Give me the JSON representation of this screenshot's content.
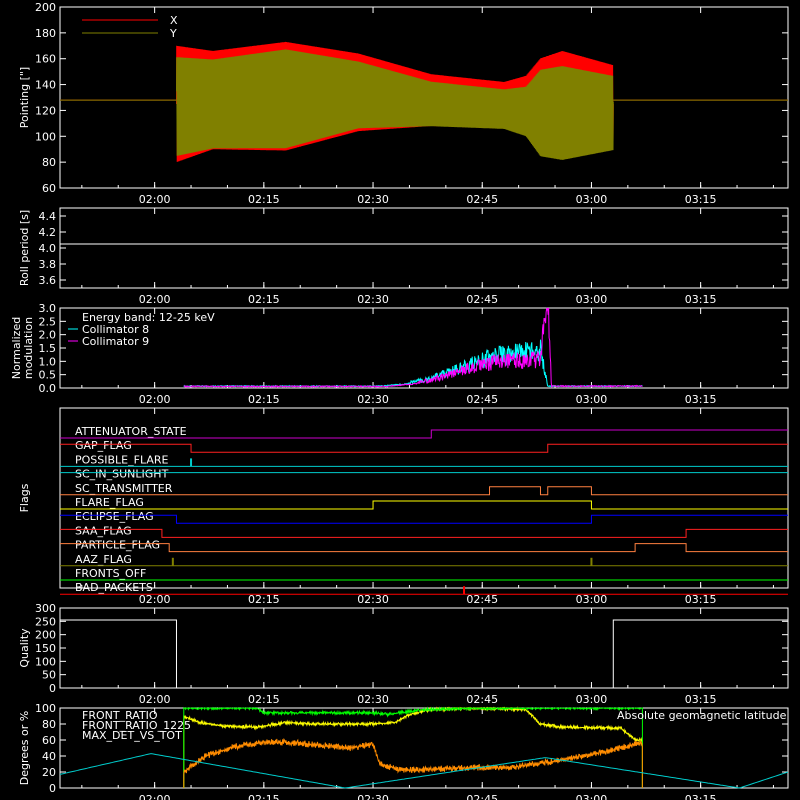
{
  "chart_data": [
    {
      "type": "line",
      "title": "",
      "ylabel": "Pointing [\"]",
      "ylim": [
        60,
        200
      ],
      "yticks": [
        60,
        80,
        100,
        120,
        140,
        160,
        180,
        200
      ],
      "xlim": [
        "01:47",
        "03:27"
      ],
      "xticks": [
        "02:00",
        "02:15",
        "02:30",
        "02:45",
        "03:00",
        "03:15"
      ],
      "legend_placement": "top-left",
      "series": [
        {
          "name": "X",
          "color": "#ff0000",
          "flat_value": 128,
          "active_range": [
            "02:03",
            "03:03"
          ],
          "center": [
            [
              0,
              125
            ],
            [
              5,
              128
            ],
            [
              15,
              131
            ],
            [
              25,
              134
            ],
            [
              35,
              128
            ],
            [
              45,
              124
            ],
            [
              53,
              126
            ],
            [
              60,
              125
            ]
          ],
          "amplitude": [
            [
              0,
              45
            ],
            [
              5,
              38
            ],
            [
              15,
              42
            ],
            [
              25,
              30
            ],
            [
              35,
              20
            ],
            [
              45,
              18
            ],
            [
              48,
              22
            ],
            [
              50,
              35
            ],
            [
              53,
              40
            ],
            [
              60,
              30
            ]
          ]
        },
        {
          "name": "Y",
          "color": "#808000",
          "flat_value": 128,
          "active_range": [
            "02:03",
            "03:03"
          ],
          "center": [
            [
              0,
              123
            ],
            [
              5,
              125
            ],
            [
              15,
              129
            ],
            [
              25,
              132
            ],
            [
              35,
              125
            ],
            [
              45,
              121
            ],
            [
              50,
              118
            ],
            [
              53,
              118
            ],
            [
              60,
              118
            ]
          ],
          "amplitude": [
            [
              0,
              40
            ],
            [
              5,
              36
            ],
            [
              15,
              40
            ],
            [
              25,
              27
            ],
            [
              35,
              18
            ],
            [
              45,
              16
            ],
            [
              48,
              20
            ],
            [
              50,
              35
            ],
            [
              53,
              38
            ],
            [
              60,
              30
            ]
          ]
        }
      ]
    },
    {
      "type": "line",
      "ylabel": "Roll period [s]",
      "ylim": [
        3.5,
        4.5
      ],
      "yticks": [
        "3.6",
        "3.8",
        "4.0",
        "4.2",
        "4.4"
      ],
      "xticks": [
        "02:00",
        "02:15",
        "02:30",
        "02:45",
        "03:00",
        "03:15"
      ],
      "series": [
        {
          "name": "",
          "color": "#ffffff",
          "value": 4.05
        }
      ]
    },
    {
      "type": "line",
      "ylabel": "Normalized modulation",
      "ylim": [
        0,
        3.0
      ],
      "yticks": [
        "0.0",
        "0.5",
        "1.0",
        "1.5",
        "2.0",
        "2.5",
        "3.0"
      ],
      "xticks": [
        "02:00",
        "02:15",
        "02:30",
        "02:45",
        "03:00",
        "03:15"
      ],
      "annotation": "Energy band: 12-25 keV",
      "series": [
        {
          "name": "Collimator 8",
          "color": "#00ffff",
          "range": [
            "02:04",
            "03:07"
          ],
          "profile": [
            [
              0,
              0.05
            ],
            [
              27,
              0.05
            ],
            [
              33,
              0.2
            ],
            [
              38,
              0.5
            ],
            [
              42,
              0.8
            ],
            [
              46,
              0.9
            ],
            [
              49,
              1.0
            ],
            [
              50,
              0.05
            ],
            [
              63,
              0.05
            ]
          ]
        },
        {
          "name": "Collimator 9",
          "color": "#ff00ff",
          "range": [
            "02:04",
            "03:07"
          ],
          "profile": [
            [
              0,
              0.04
            ],
            [
              28,
              0.04
            ],
            [
              34,
              0.2
            ],
            [
              38,
              0.45
            ],
            [
              42,
              0.65
            ],
            [
              46,
              0.7
            ],
            [
              49,
              0.75
            ],
            [
              50,
              2.6
            ],
            [
              50.5,
              0.05
            ],
            [
              63,
              0.05
            ]
          ]
        }
      ]
    },
    {
      "type": "line",
      "ylabel": "Flags",
      "xticks": [
        "02:00",
        "02:15",
        "02:30",
        "02:45",
        "03:00",
        "03:15"
      ],
      "flags": [
        {
          "name": "ATTENUATOR_STATE",
          "color": "#cc00cc",
          "steps": [
            [
              0,
              0
            ],
            [
              51,
              1
            ],
            [
              100,
              1
            ]
          ]
        },
        {
          "name": "GAP_FLAG",
          "color": "#ff2020",
          "steps": [
            [
              0,
              1
            ],
            [
              18,
              0
            ],
            [
              67,
              1
            ],
            [
              100,
              1
            ]
          ]
        },
        {
          "name": "POSSIBLE_FLARE",
          "color": "#00cccc",
          "steps": [
            [
              0,
              0
            ],
            [
              100,
              0
            ]
          ],
          "spikes": [
            18
          ]
        },
        {
          "name": "SC_IN_SUNLIGHT",
          "color": "#00cccc",
          "steps": [
            [
              0,
              1
            ],
            [
              100,
              1
            ]
          ]
        },
        {
          "name": "SC_TRANSMITTER",
          "color": "#ff8040",
          "steps": [
            [
              0,
              0
            ],
            [
              59,
              1
            ],
            [
              66,
              0
            ],
            [
              67,
              1
            ],
            [
              73,
              0
            ],
            [
              100,
              0
            ]
          ]
        },
        {
          "name": "FLARE_FLAG",
          "color": "#ffff00",
          "steps": [
            [
              0,
              0
            ],
            [
              43,
              1
            ],
            [
              73,
              0
            ],
            [
              100,
              0
            ]
          ]
        },
        {
          "name": "ECLIPSE_FLAG",
          "color": "#0000ff",
          "steps": [
            [
              0,
              1
            ],
            [
              16,
              0
            ],
            [
              73,
              1
            ],
            [
              100,
              1
            ]
          ]
        },
        {
          "name": "SAA_FLAG",
          "color": "#ff2020",
          "steps": [
            [
              0,
              1
            ],
            [
              14,
              0
            ],
            [
              86,
              1
            ],
            [
              100,
              1
            ]
          ]
        },
        {
          "name": "PARTICLE_FLAG",
          "color": "#ff8040",
          "steps": [
            [
              0,
              1
            ],
            [
              15,
              0
            ],
            [
              79,
              1
            ],
            [
              86,
              0
            ],
            [
              100,
              0
            ]
          ]
        },
        {
          "name": "AAZ_FLAG",
          "color": "#808000",
          "steps": [
            [
              0,
              0
            ],
            [
              100,
              0
            ]
          ],
          "spikes": [
            15.5,
            73
          ]
        },
        {
          "name": "FRONTS_OFF",
          "color": "#00ff00",
          "steps": [
            [
              0,
              0
            ],
            [
              100,
              0
            ]
          ]
        },
        {
          "name": "BAD_PACKETS",
          "color": "#ff0000",
          "steps": [
            [
              0,
              0
            ],
            [
              100,
              0
            ]
          ],
          "spikes": [
            55.5
          ]
        }
      ]
    },
    {
      "type": "line",
      "ylabel": "Quality",
      "ylim": [
        0,
        300
      ],
      "yticks": [
        "0",
        "50",
        "100",
        "150",
        "200",
        "250",
        "300"
      ],
      "xticks": [
        "02:00",
        "02:15",
        "02:30",
        "02:45",
        "03:00",
        "03:15"
      ],
      "series": [
        {
          "name": "",
          "color": "#ffffff",
          "steps": [
            [
              "01:47",
              255
            ],
            [
              "02:03",
              0
            ],
            [
              "03:03",
              255
            ],
            [
              "03:27",
              255
            ]
          ]
        }
      ]
    },
    {
      "type": "line",
      "ylabel": "Degrees or %",
      "ylim": [
        0,
        100
      ],
      "yticks": [
        "0",
        "20",
        "40",
        "60",
        "80",
        "100"
      ],
      "xticks": [
        "02:00",
        "02:15",
        "02:30",
        "02:45",
        "03:00",
        "03:15"
      ],
      "series": [
        {
          "name": "FRONT_RATIO",
          "color": "#ffff00",
          "range": [
            "02:04",
            "03:07"
          ],
          "profile": [
            [
              0,
              90
            ],
            [
              2,
              82
            ],
            [
              5,
              78
            ],
            [
              10,
              76
            ],
            [
              14,
              82
            ],
            [
              18,
              80
            ],
            [
              26,
              80
            ],
            [
              29,
              82
            ],
            [
              31,
              92
            ],
            [
              34,
              98
            ],
            [
              40,
              100
            ],
            [
              47,
              98
            ],
            [
              49,
              80
            ],
            [
              52,
              76
            ],
            [
              60,
              75
            ],
            [
              62,
              60
            ]
          ]
        },
        {
          "name": "FRONT_RATIO_1225",
          "color": "#00ff00",
          "range": [
            "02:04",
            "03:07"
          ],
          "profile": [
            [
              0,
              100
            ],
            [
              10,
              100
            ],
            [
              11,
              94
            ],
            [
              18,
              94
            ],
            [
              26,
              94
            ],
            [
              28,
              92
            ],
            [
              33,
              98
            ],
            [
              40,
              100
            ],
            [
              48,
              100
            ],
            [
              52,
              100
            ],
            [
              62,
              100
            ]
          ]
        },
        {
          "name": "MAX_DET_VS_TOT",
          "color": "#ff8c00",
          "range": [
            "02:04",
            "03:07"
          ],
          "profile": [
            [
              0,
              20
            ],
            [
              3,
              40
            ],
            [
              7,
              52
            ],
            [
              12,
              58
            ],
            [
              17,
              55
            ],
            [
              23,
              50
            ],
            [
              26,
              55
            ],
            [
              27,
              30
            ],
            [
              30,
              22
            ],
            [
              38,
              25
            ],
            [
              45,
              26
            ],
            [
              50,
              32
            ],
            [
              55,
              40
            ],
            [
              60,
              50
            ],
            [
              62,
              55
            ]
          ]
        },
        {
          "name": "Absolute geomagnetic latitude",
          "color": "#00cccc",
          "profile_full": [
            [
              0,
              17
            ],
            [
              15,
              43
            ],
            [
              47,
              0
            ],
            [
              80,
              38
            ],
            [
              112,
              0
            ],
            [
              120,
              20
            ]
          ]
        }
      ]
    }
  ]
}
